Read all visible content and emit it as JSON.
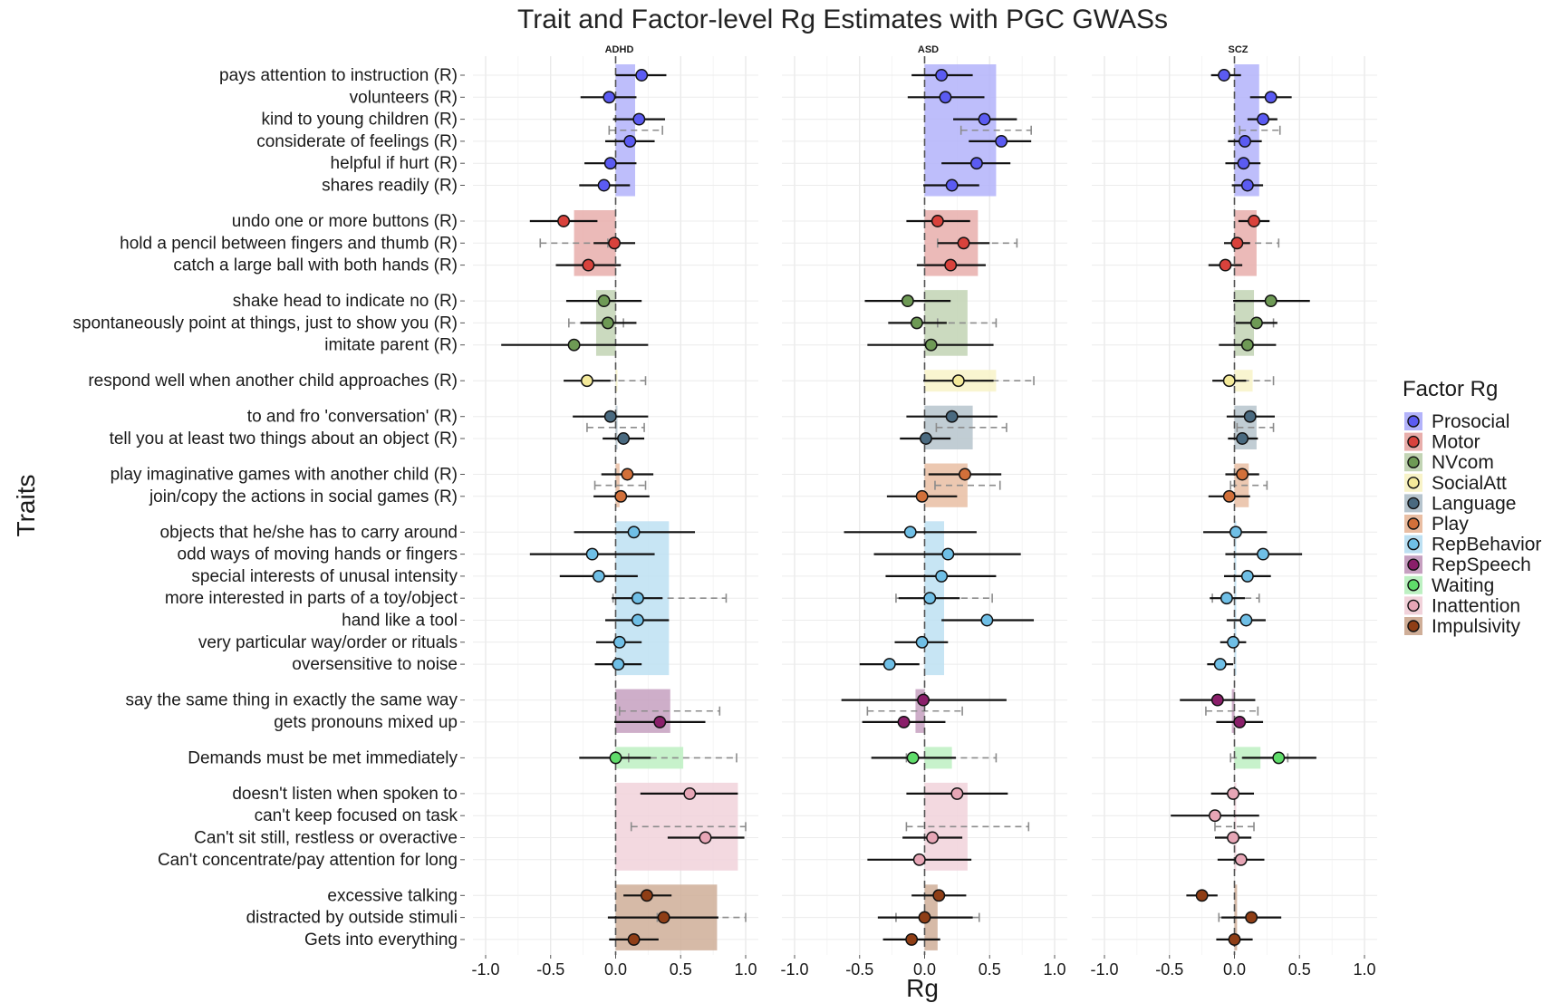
{
  "chart_data": {
    "type": "forest",
    "title": "Trait and Factor-level Rg Estimates with PGC GWASs",
    "xlabel": "Rg",
    "ylabel": "Traits",
    "xlim": [
      -1.0,
      1.0
    ],
    "xticks": [
      "-1.0",
      "-0.5",
      "0.0",
      "0.5",
      "1.0"
    ],
    "panels": [
      "ADHD",
      "ASD",
      "SCZ"
    ],
    "legend": {
      "title": "Factor Rg",
      "position": "right"
    },
    "factors": [
      {
        "name": "Prosocial",
        "color": "#5b5bf2",
        "band": "#b3b3fa"
      },
      {
        "name": "Motor",
        "color": "#d9423c",
        "band": "#e8aeab"
      },
      {
        "name": "NVcom",
        "color": "#6e9a55",
        "band": "#c2d4b4"
      },
      {
        "name": "SocialAtt",
        "color": "#f4ea9a",
        "band": "#f8f3c8"
      },
      {
        "name": "Language",
        "color": "#4a6a80",
        "band": "#b6c4cd"
      },
      {
        "name": "Play",
        "color": "#d2703a",
        "band": "#e9bea3"
      },
      {
        "name": "RepBehavior",
        "color": "#6fbfe6",
        "band": "#bde0f2"
      },
      {
        "name": "RepSpeech",
        "color": "#8a1f6a",
        "band": "#c6a0c0"
      },
      {
        "name": "Waiting",
        "color": "#5fdc6a",
        "band": "#bdf0c2"
      },
      {
        "name": "Inattention",
        "color": "#e7a6b6",
        "band": "#f1d2da"
      },
      {
        "name": "Impulsivity",
        "color": "#8f3e16",
        "band": "#cfae98"
      }
    ],
    "groups": [
      {
        "factor": "Prosocial",
        "factor_rg": {
          "ADHD": 0.15,
          "ASD": 0.55,
          "SCZ": 0.19
        },
        "factor_ci": {
          "ADHD": [
            -0.05,
            0.36
          ],
          "ASD": [
            0.28,
            0.82
          ],
          "SCZ": [
            0.04,
            0.35
          ]
        },
        "traits": [
          {
            "label": "pays attention to instruction (R)",
            "ADHD": [
              0.2,
              0.0,
              0.39
            ],
            "ASD": [
              0.13,
              -0.1,
              0.37
            ],
            "SCZ": [
              -0.08,
              -0.18,
              0.05
            ]
          },
          {
            "label": "volunteers (R)",
            "ADHD": [
              -0.05,
              -0.27,
              0.16
            ],
            "ASD": [
              0.16,
              -0.13,
              0.46
            ],
            "SCZ": [
              0.28,
              0.12,
              0.44
            ]
          },
          {
            "label": "kind to young children (R)",
            "ADHD": [
              0.18,
              -0.02,
              0.38
            ],
            "ASD": [
              0.46,
              0.22,
              0.71
            ],
            "SCZ": [
              0.22,
              0.1,
              0.33
            ]
          },
          {
            "label": "considerate of feelings (R)",
            "ADHD": [
              0.11,
              -0.08,
              0.3
            ],
            "ASD": [
              0.59,
              0.34,
              0.82
            ],
            "SCZ": [
              0.08,
              -0.05,
              0.21
            ]
          },
          {
            "label": "helpful if hurt (R)",
            "ADHD": [
              -0.04,
              -0.24,
              0.16
            ],
            "ASD": [
              0.4,
              0.13,
              0.66
            ],
            "SCZ": [
              0.07,
              -0.07,
              0.2
            ]
          },
          {
            "label": "shares readily (R)",
            "ADHD": [
              -0.09,
              -0.28,
              0.11
            ],
            "ASD": [
              0.21,
              -0.01,
              0.42
            ],
            "SCZ": [
              0.1,
              -0.02,
              0.22
            ]
          }
        ]
      },
      {
        "factor": "Motor",
        "factor_rg": {
          "ADHD": -0.32,
          "ASD": 0.41,
          "SCZ": 0.17
        },
        "factor_ci": {
          "ADHD": [
            -0.58,
            -0.06
          ],
          "ASD": [
            0.1,
            0.71
          ],
          "SCZ": [
            -0.01,
            0.34
          ]
        },
        "traits": [
          {
            "label": "undo one or more buttons (R)",
            "ADHD": [
              -0.4,
              -0.66,
              -0.14
            ],
            "ASD": [
              0.1,
              -0.14,
              0.35
            ],
            "SCZ": [
              0.15,
              0.03,
              0.27
            ]
          },
          {
            "label": "hold a pencil between fingers and thumb (R)",
            "ADHD": [
              -0.01,
              -0.17,
              0.15
            ],
            "ASD": [
              0.3,
              0.1,
              0.5
            ],
            "SCZ": [
              0.02,
              -0.08,
              0.12
            ]
          },
          {
            "label": "catch a large ball with both hands (R)",
            "ADHD": [
              -0.21,
              -0.46,
              0.04
            ],
            "ASD": [
              0.2,
              -0.06,
              0.47
            ],
            "SCZ": [
              -0.07,
              -0.2,
              0.06
            ]
          }
        ]
      },
      {
        "factor": "NVcom",
        "factor_rg": {
          "ADHD": -0.15,
          "ASD": 0.33,
          "SCZ": 0.15
        },
        "factor_ci": {
          "ADHD": [
            -0.36,
            0.06
          ],
          "ASD": [
            0.1,
            0.55
          ],
          "SCZ": [
            0.0,
            0.3
          ]
        },
        "traits": [
          {
            "label": "shake head to indicate no (R)",
            "ADHD": [
              -0.09,
              -0.38,
              0.2
            ],
            "ASD": [
              -0.13,
              -0.46,
              0.2
            ],
            "SCZ": [
              0.28,
              -0.01,
              0.58
            ]
          },
          {
            "label": "spontaneously point at things, just to show you (R)",
            "ADHD": [
              -0.06,
              -0.27,
              0.16
            ],
            "ASD": [
              -0.06,
              -0.28,
              0.17
            ],
            "SCZ": [
              0.17,
              0.01,
              0.33
            ]
          },
          {
            "label": "imitate parent (R)",
            "ADHD": [
              -0.32,
              -0.88,
              0.25
            ],
            "ASD": [
              0.05,
              -0.44,
              0.53
            ],
            "SCZ": [
              0.1,
              -0.12,
              0.32
            ]
          }
        ]
      },
      {
        "factor": "SocialAtt",
        "factor_rg": {
          "ADHD": 0.0,
          "ASD": 0.55,
          "SCZ": 0.14
        },
        "factor_ci": {
          "ADHD": [
            -0.23,
            0.23
          ],
          "ASD": [
            0.27,
            0.84
          ],
          "SCZ": [
            -0.02,
            0.3
          ]
        },
        "traits": [
          {
            "label": "respond well when another child approaches (R)",
            "ADHD": [
              -0.22,
              -0.4,
              -0.04
            ],
            "ASD": [
              0.26,
              -0.01,
              0.53
            ],
            "SCZ": [
              -0.04,
              -0.17,
              0.09
            ]
          }
        ]
      },
      {
        "factor": "Language",
        "factor_rg": {
          "ADHD": 0.0,
          "ASD": 0.37,
          "SCZ": 0.17
        },
        "factor_ci": {
          "ADHD": [
            -0.22,
            0.22
          ],
          "ASD": [
            0.09,
            0.63
          ],
          "SCZ": [
            0.02,
            0.3
          ]
        },
        "traits": [
          {
            "label": "to and fro 'conversation' (R)",
            "ADHD": [
              -0.04,
              -0.33,
              0.25
            ],
            "ASD": [
              0.21,
              -0.14,
              0.56
            ],
            "SCZ": [
              0.12,
              -0.06,
              0.31
            ]
          },
          {
            "label": "tell you at least two things about an object (R)",
            "ADHD": [
              0.06,
              -0.1,
              0.22
            ],
            "ASD": [
              0.01,
              -0.19,
              0.2
            ],
            "SCZ": [
              0.06,
              -0.05,
              0.18
            ]
          }
        ]
      },
      {
        "factor": "Play",
        "factor_rg": {
          "ADHD": 0.03,
          "ASD": 0.33,
          "SCZ": 0.11
        },
        "factor_ci": {
          "ADHD": [
            -0.16,
            0.23
          ],
          "ASD": [
            0.08,
            0.58
          ],
          "SCZ": [
            -0.03,
            0.25
          ]
        },
        "traits": [
          {
            "label": "play imaginative games with another child (R)",
            "ADHD": [
              0.09,
              -0.11,
              0.29
            ],
            "ASD": [
              0.31,
              0.03,
              0.59
            ],
            "SCZ": [
              0.06,
              -0.07,
              0.19
            ]
          },
          {
            "label": "join/copy the actions in social games (R)",
            "ADHD": [
              0.04,
              -0.17,
              0.26
            ],
            "ASD": [
              -0.02,
              -0.29,
              0.25
            ],
            "SCZ": [
              -0.04,
              -0.2,
              0.12
            ]
          }
        ]
      },
      {
        "factor": "RepBehavior",
        "factor_rg": {
          "ADHD": 0.41,
          "ASD": 0.15,
          "SCZ": 0.01
        },
        "factor_ci": {
          "ADHD": [
            -0.02,
            0.85
          ],
          "ASD": [
            -0.22,
            0.52
          ],
          "SCZ": [
            -0.17,
            0.19
          ]
        },
        "traits": [
          {
            "label": "objects that he/she has to carry around",
            "ADHD": [
              0.14,
              -0.32,
              0.61
            ],
            "ASD": [
              -0.11,
              -0.62,
              0.4
            ],
            "SCZ": [
              0.01,
              -0.24,
              0.25
            ]
          },
          {
            "label": "odd ways of moving  hands or fingers",
            "ADHD": [
              -0.18,
              -0.66,
              0.3
            ],
            "ASD": [
              0.18,
              -0.39,
              0.74
            ],
            "SCZ": [
              0.22,
              -0.07,
              0.52
            ]
          },
          {
            "label": "special interests of unusal intensity",
            "ADHD": [
              -0.13,
              -0.43,
              0.17
            ],
            "ASD": [
              0.13,
              -0.3,
              0.55
            ],
            "SCZ": [
              0.1,
              -0.08,
              0.28
            ]
          },
          {
            "label": "more interested in parts of a toy/object",
            "ADHD": [
              0.17,
              -0.03,
              0.36
            ],
            "ASD": [
              0.04,
              -0.2,
              0.27
            ],
            "SCZ": [
              -0.06,
              -0.19,
              0.08
            ]
          },
          {
            "label": "hand like a tool",
            "ADHD": [
              0.17,
              -0.08,
              0.41
            ],
            "ASD": [
              0.48,
              0.13,
              0.84
            ],
            "SCZ": [
              0.09,
              -0.06,
              0.24
            ]
          },
          {
            "label": "very particular way/order or rituals",
            "ADHD": [
              0.03,
              -0.15,
              0.2
            ],
            "ASD": [
              -0.02,
              -0.23,
              0.18
            ],
            "SCZ": [
              -0.01,
              -0.11,
              0.09
            ]
          },
          {
            "label": "oversensitive to noise",
            "ADHD": [
              0.02,
              -0.16,
              0.2
            ],
            "ASD": [
              -0.27,
              -0.5,
              -0.04
            ],
            "SCZ": [
              -0.11,
              -0.21,
              -0.01
            ]
          }
        ]
      },
      {
        "factor": "RepSpeech",
        "factor_rg": {
          "ADHD": 0.42,
          "ASD": -0.07,
          "SCZ": -0.02
        },
        "factor_ci": {
          "ADHD": [
            0.03,
            0.8
          ],
          "ASD": [
            -0.44,
            0.29
          ],
          "SCZ": [
            -0.22,
            0.18
          ]
        },
        "traits": [
          {
            "label": "say the same thing in exactly the same way",
            "ADHD": null,
            "ASD": [
              -0.01,
              -0.64,
              0.63
            ],
            "SCZ": [
              -0.13,
              -0.42,
              0.16
            ]
          },
          {
            "label": "gets pronouns mixed up",
            "ADHD": [
              0.34,
              -0.01,
              0.69
            ],
            "ASD": [
              -0.16,
              -0.48,
              0.16
            ],
            "SCZ": [
              0.04,
              -0.14,
              0.22
            ]
          }
        ]
      },
      {
        "factor": "Waiting",
        "factor_rg": {
          "ADHD": 0.52,
          "ASD": 0.21,
          "SCZ": 0.2
        },
        "factor_ci": {
          "ADHD": [
            0.1,
            0.93
          ],
          "ASD": [
            -0.14,
            0.55
          ],
          "SCZ": [
            -0.03,
            0.41
          ]
        },
        "traits": [
          {
            "label": "Demands must be met immediately",
            "ADHD": [
              0.0,
              -0.28,
              0.27
            ],
            "ASD": [
              -0.09,
              -0.41,
              0.24
            ],
            "SCZ": [
              0.34,
              0.06,
              0.63
            ]
          }
        ]
      },
      {
        "factor": "Inattention",
        "factor_rg": {
          "ADHD": 0.94,
          "ASD": 0.33,
          "SCZ": 0.0
        },
        "factor_ci": {
          "ADHD": [
            0.12,
            1.0
          ],
          "ASD": [
            -0.14,
            0.8
          ],
          "SCZ": [
            -0.15,
            0.15
          ]
        },
        "traits": [
          {
            "label": "doesn't listen when spoken to",
            "ADHD": [
              0.57,
              0.19,
              0.94
            ],
            "ASD": [
              0.25,
              -0.14,
              0.64
            ],
            "SCZ": [
              -0.01,
              -0.18,
              0.15
            ]
          },
          {
            "label": "can't keep focused on task",
            "ADHD": null,
            "ASD": null,
            "SCZ": [
              -0.15,
              -0.49,
              0.19
            ]
          },
          {
            "label": "Can't sit still, restless or overactive",
            "ADHD": [
              0.69,
              0.4,
              0.99
            ],
            "ASD": [
              0.06,
              -0.17,
              0.29
            ],
            "SCZ": [
              -0.01,
              -0.15,
              0.13
            ]
          },
          {
            "label": "Can't concentrate/pay attention for long",
            "ADHD": null,
            "ASD": [
              -0.04,
              -0.44,
              0.36
            ],
            "SCZ": [
              0.05,
              -0.13,
              0.23
            ]
          }
        ]
      },
      {
        "factor": "Impulsivity",
        "factor_rg": {
          "ADHD": 0.78,
          "ASD": 0.1,
          "SCZ": 0.02
        },
        "factor_ci": {
          "ADHD": [
            0.32,
            1.0
          ],
          "ASD": [
            -0.22,
            0.42
          ],
          "SCZ": [
            -0.12,
            0.14
          ]
        },
        "traits": [
          {
            "label": "excessive talking",
            "ADHD": [
              0.24,
              0.06,
              0.43
            ],
            "ASD": [
              0.11,
              -0.1,
              0.32
            ],
            "SCZ": [
              -0.25,
              -0.37,
              -0.13
            ]
          },
          {
            "label": "distracted by outside stimuli",
            "ADHD": [
              0.37,
              -0.06,
              0.79
            ],
            "ASD": [
              0.0,
              -0.36,
              0.37
            ],
            "SCZ": [
              0.13,
              -0.1,
              0.36
            ]
          },
          {
            "label": "Gets into everything",
            "ADHD": [
              0.14,
              -0.05,
              0.33
            ],
            "ASD": [
              -0.1,
              -0.32,
              0.12
            ],
            "SCZ": [
              0.0,
              -0.14,
              0.14
            ]
          }
        ]
      }
    ]
  }
}
